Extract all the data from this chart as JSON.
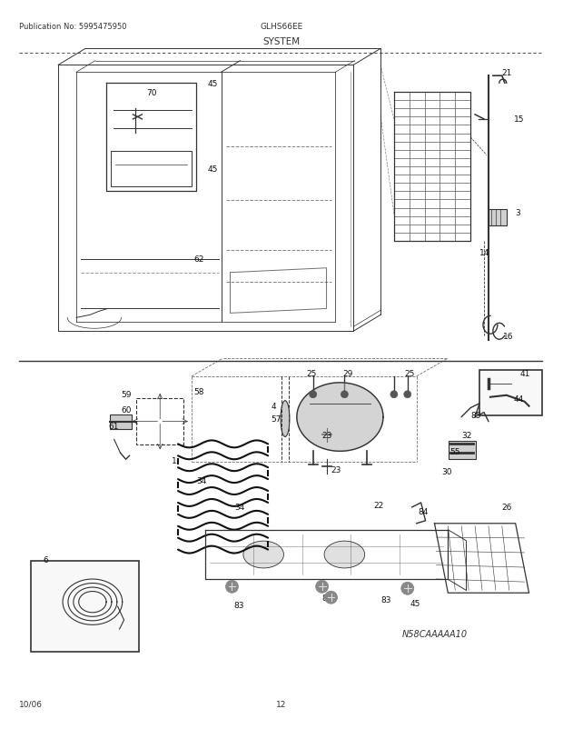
{
  "pub_no": "Publication No: 5995475950",
  "model": "GLHS66EE",
  "section": "SYSTEM",
  "page": "12",
  "date": "10/06",
  "diagram_code": "N58CAAAAA10",
  "bg_color": "#ffffff",
  "text_color": "#222222",
  "lc": "#333333"
}
